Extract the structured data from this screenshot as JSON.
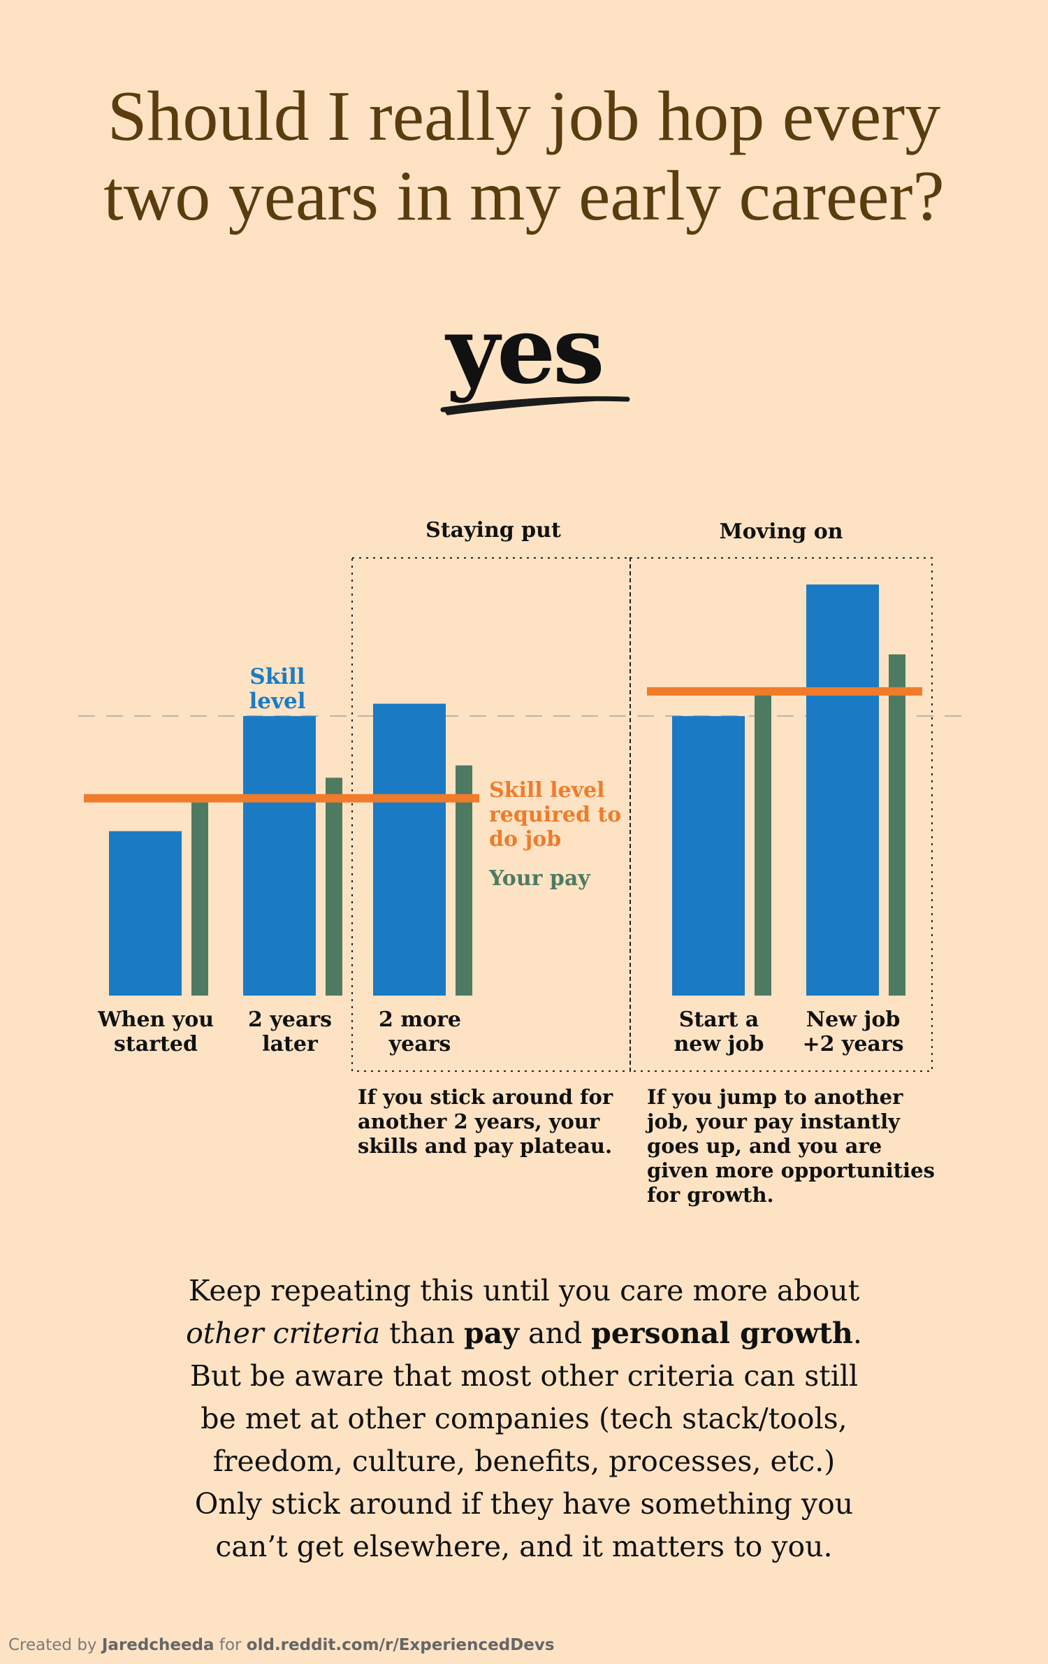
{
  "title": {
    "line1": "Should I really job hop every",
    "line2": "two years in my early career?"
  },
  "answer": "yes",
  "colors": {
    "background": "#fde3c4",
    "skill": "#1a7bc4",
    "pay": "#4f7a62",
    "required": "#f07b2a",
    "title": "#5a3c0e"
  },
  "chart_data": {
    "type": "bar",
    "title": "",
    "ylabel": "",
    "xlabel": "",
    "ylim": [
      0,
      100
    ],
    "categories": [
      "When you started",
      "2 years later",
      "2 more years",
      "Start a new job",
      "New job +2 years"
    ],
    "category_lines": [
      [
        "When you",
        "started"
      ],
      [
        "2 years",
        "later"
      ],
      [
        "2 more",
        "years"
      ],
      [
        "Start a",
        "new job"
      ],
      [
        "New job",
        "+2 years"
      ]
    ],
    "series": [
      {
        "name": "Skill level",
        "key": "skill",
        "values": [
          40,
          68,
          71,
          68,
          100
        ]
      },
      {
        "name": "Your pay",
        "key": "pay",
        "values": [
          47,
          53,
          56,
          74,
          83
        ]
      },
      {
        "name": "Skill level required to do job",
        "key": "required",
        "values": [
          48,
          48,
          48,
          74,
          74
        ]
      }
    ],
    "reference_line": {
      "value": 68,
      "style": "dashed"
    },
    "groups": [
      {
        "label": "Staying put",
        "categories": [
          2
        ]
      },
      {
        "label": "Moving on",
        "categories": [
          3,
          4
        ]
      }
    ],
    "annotations": {
      "skill_label": [
        "Skill",
        "level"
      ],
      "required_label": [
        "Skill level",
        "required to",
        "do job"
      ],
      "pay_label": "Your pay"
    }
  },
  "captions": {
    "staying": [
      "If you stick around for",
      "another 2 years, your",
      "skills and pay plateau."
    ],
    "moving": [
      "If you jump to another",
      "job, your pay instantly",
      "goes up, and you are",
      "given more opportunities",
      "for growth."
    ]
  },
  "conclusion": {
    "line1": "Keep repeating this until you care more about",
    "line2_italic": "other criteria",
    "line2_mid1": " than ",
    "line2_bold1": "pay",
    "line2_mid2": " and ",
    "line2_bold2": "personal growth",
    "line2_end": ".",
    "line3": "But be aware that most other criteria can still",
    "line4": "be met at other companies (tech stack/tools,",
    "line5": "freedom, culture, benefits, processes, etc.)",
    "line6": "Only stick around if they have something you",
    "line7": "can’t get elsewhere, and it matters to you."
  },
  "footer": {
    "created_by": "Created by",
    "author": "Jaredcheeda",
    "for": "for",
    "site": "old.reddit.com/r/ExperiencedDevs"
  }
}
